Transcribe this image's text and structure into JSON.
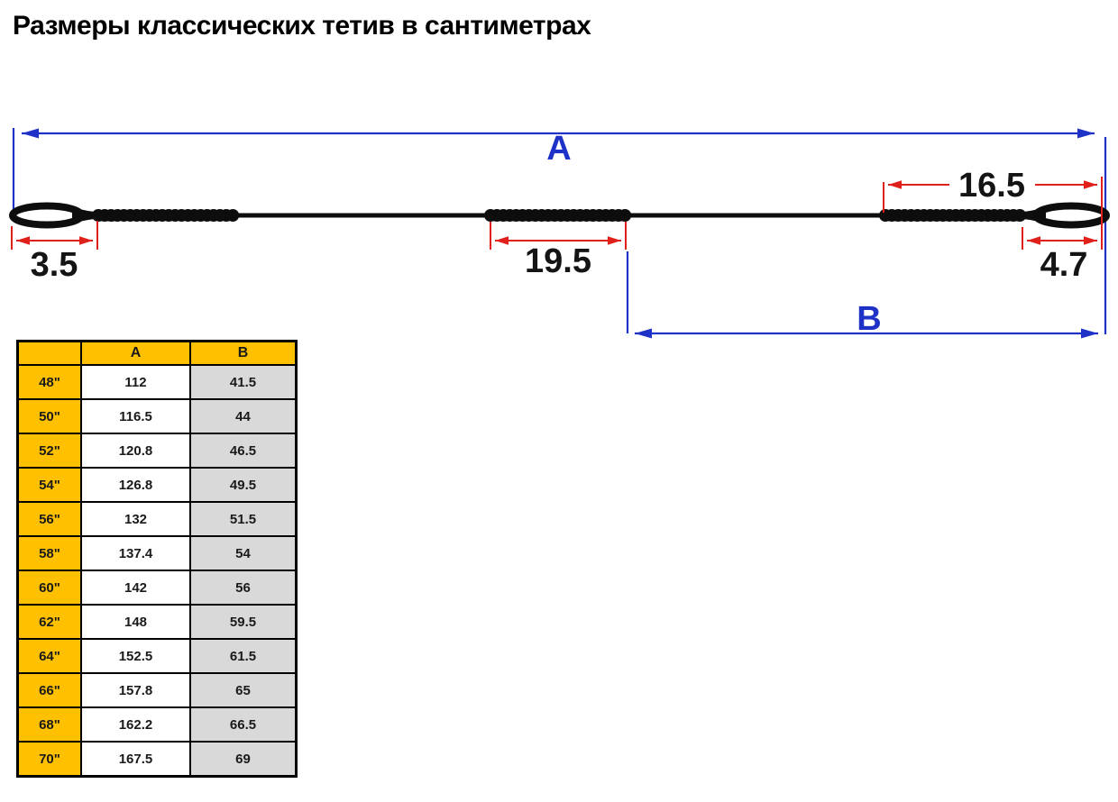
{
  "title": "Размеры классических тетив в сантиметрах",
  "diagram": {
    "label_a": "A",
    "label_b": "B",
    "left_loop_length": "3.5",
    "center_serving_length": "19.5",
    "right_serving_to_tip_length": "16.5",
    "right_loop_length": "4.7"
  },
  "colors": {
    "dimension_blue": "#1e32c8",
    "dimension_red": "#e0201a",
    "table_header_yellow": "#ffc000",
    "table_b_column_gray": "#d9d9d9"
  },
  "table": {
    "headers": [
      "",
      "A",
      "B"
    ],
    "rows": [
      {
        "size": "48\"",
        "a": "112",
        "b": "41.5"
      },
      {
        "size": "50\"",
        "a": "116.5",
        "b": "44"
      },
      {
        "size": "52\"",
        "a": "120.8",
        "b": "46.5"
      },
      {
        "size": "54\"",
        "a": "126.8",
        "b": "49.5"
      },
      {
        "size": "56\"",
        "a": "132",
        "b": "51.5"
      },
      {
        "size": "58\"",
        "a": "137.4",
        "b": "54"
      },
      {
        "size": "60\"",
        "a": "142",
        "b": "56"
      },
      {
        "size": "62\"",
        "a": "148",
        "b": "59.5"
      },
      {
        "size": "64\"",
        "a": "152.5",
        "b": "61.5"
      },
      {
        "size": "66\"",
        "a": "157.8",
        "b": "65"
      },
      {
        "size": "68\"",
        "a": "162.2",
        "b": "66.5"
      },
      {
        "size": "70\"",
        "a": "167.5",
        "b": "69"
      }
    ]
  }
}
